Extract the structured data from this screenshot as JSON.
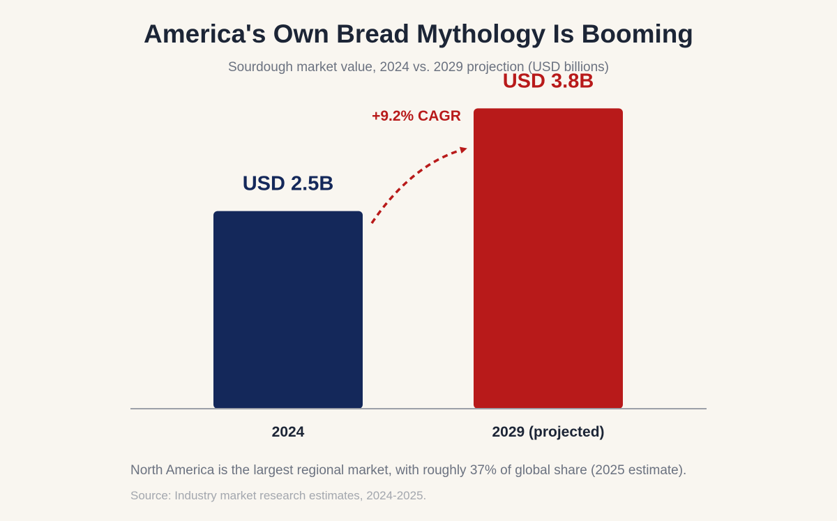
{
  "chart_data": {
    "type": "bar",
    "title": "America's Own Bread Mythology Is Booming",
    "subtitle": "Sourdough market value, 2024 vs. 2029 projection (USD billions)",
    "categories": [
      "2024",
      "2029 (projected)"
    ],
    "values": [
      2.5,
      3.8
    ],
    "value_labels": [
      "USD 2.5B",
      "USD 3.8B"
    ],
    "colors": [
      "#14285a",
      "#b81a1a"
    ],
    "annotation": "+9.2% CAGR",
    "annotation_color": "#b81a1a",
    "ylim": [
      0,
      4.5
    ],
    "grid": false,
    "xlabel": "",
    "ylabel": ""
  },
  "footer": {
    "note": "North America is the largest regional market, with roughly 37% of global share (2025 estimate).",
    "source": "Source: Industry market research estimates, 2024-2025."
  }
}
